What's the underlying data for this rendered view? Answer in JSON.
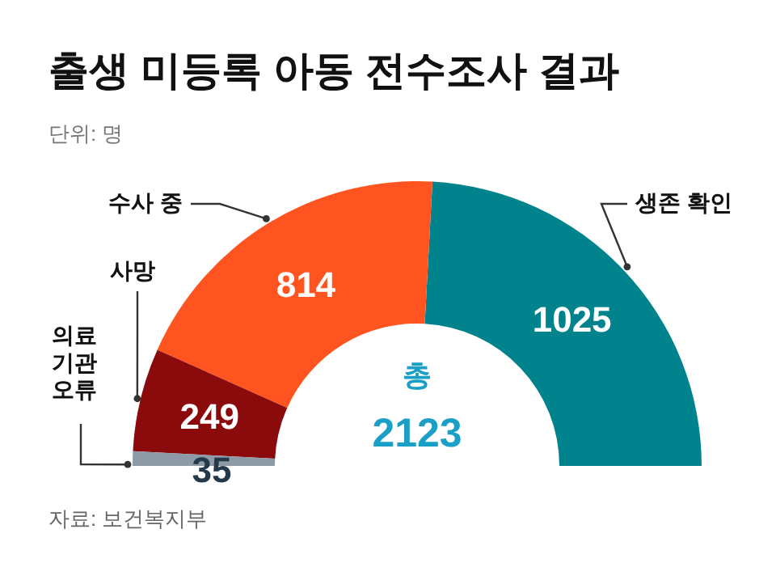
{
  "chart_data": {
    "type": "donut",
    "title": "출생 미등록 아동 전수조사 결과",
    "subtitle": "단위: 명",
    "categories": [
      "생존 확인",
      "수사 중",
      "사망",
      "의료\n기관\n오류"
    ],
    "values": [
      1025,
      814,
      249,
      35
    ],
    "colors": [
      "#00838c",
      "#ff5420",
      "#8b0a0c",
      "#8e9aa6"
    ],
    "data_labels": true,
    "annotations": [
      "총",
      "2123",
      "자료: 보건복지부"
    ]
  }
}
